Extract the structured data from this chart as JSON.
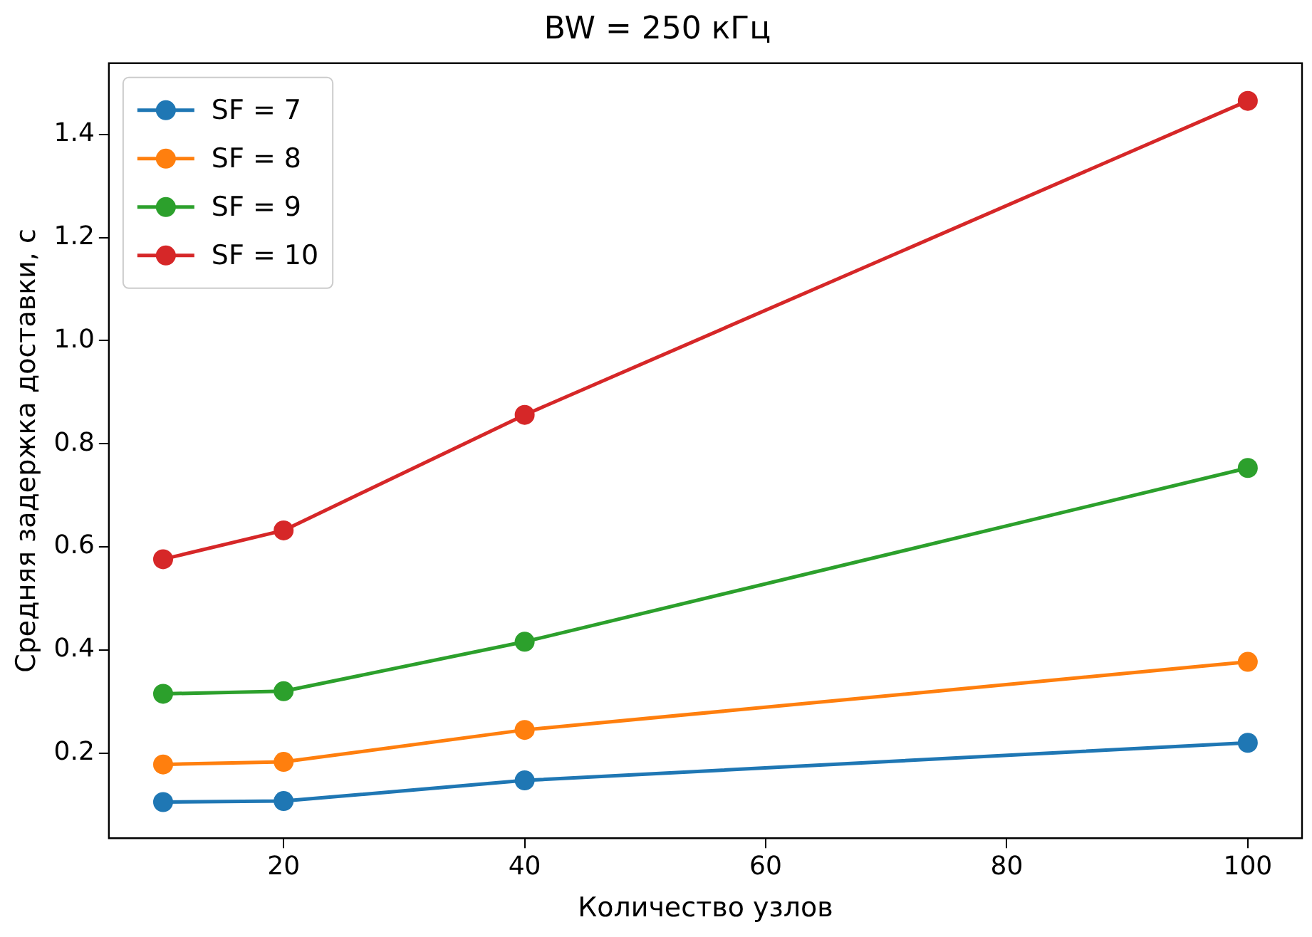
{
  "chart_data": {
    "type": "line",
    "title": "BW = 250 кГц",
    "xlabel": "Количество узлов",
    "ylabel": "Средняя задержка доставки, с",
    "x": [
      10,
      20,
      40,
      100
    ],
    "series": [
      {
        "name": "SF = 7",
        "color": "#1f77b4",
        "values": [
          0.105,
          0.107,
          0.147,
          0.22
        ]
      },
      {
        "name": "SF = 8",
        "color": "#ff7f0e",
        "values": [
          0.178,
          0.183,
          0.245,
          0.377
        ]
      },
      {
        "name": "SF = 9",
        "color": "#2ca02c",
        "values": [
          0.315,
          0.32,
          0.416,
          0.753
        ]
      },
      {
        "name": "SF = 10",
        "color": "#d62728",
        "values": [
          0.576,
          0.632,
          0.856,
          1.465
        ]
      }
    ],
    "xlim": [
      5.5,
      104.5
    ],
    "xticks": [
      20,
      40,
      60,
      80,
      100
    ],
    "ylim": [
      0.035,
      1.538
    ],
    "yticks": [
      {
        "value": 0.2,
        "label": "0.2"
      },
      {
        "value": 0.4,
        "label": "0.4"
      },
      {
        "value": 0.6,
        "label": "0.6"
      },
      {
        "value": 0.8,
        "label": "0.8"
      },
      {
        "value": 1,
        "label": "1.0"
      },
      {
        "value": 1.2,
        "label": "1.2"
      },
      {
        "value": 1.4,
        "label": "1.4"
      }
    ],
    "legend": "top left",
    "marker": "circle",
    "line_style": "solid",
    "grid": false
  }
}
